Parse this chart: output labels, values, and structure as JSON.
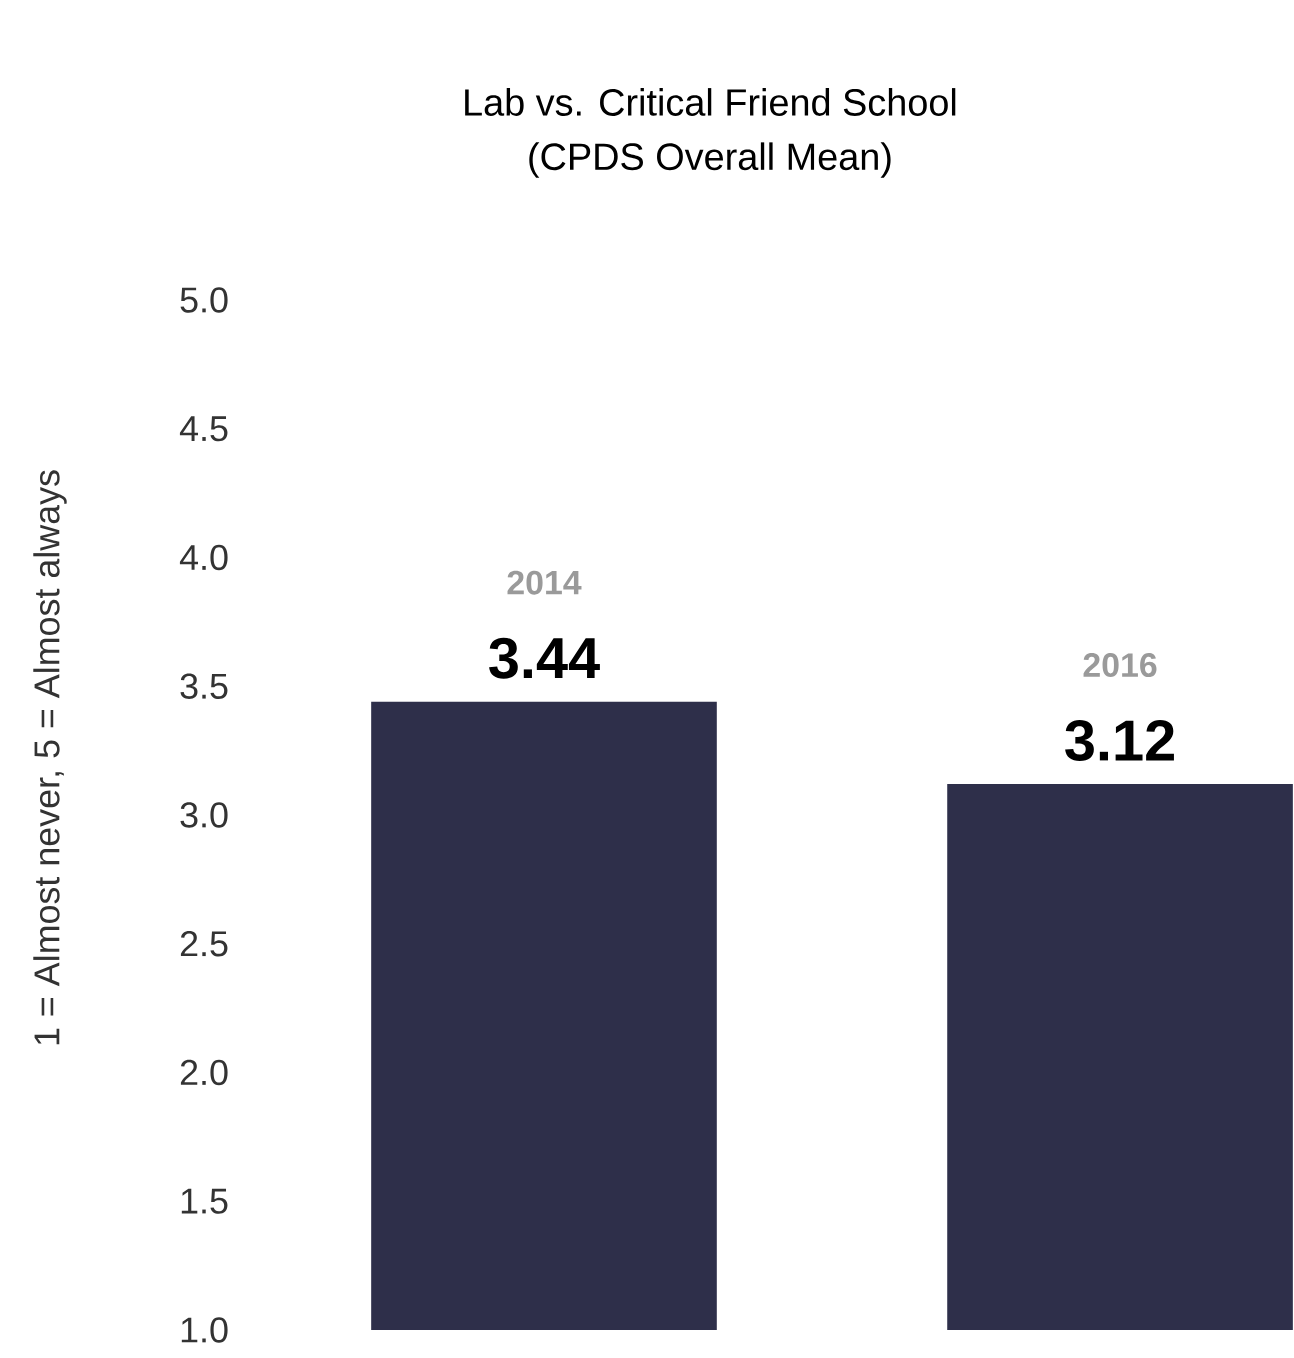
{
  "chart_data": {
    "type": "bar",
    "title": "Lab vs. Critical Friend School",
    "subtitle": "(CPDS Overall Mean)",
    "ylabel": "1 = Almost never, 5 = Almost always",
    "categories": [
      "2014",
      "2016"
    ],
    "values": [
      3.44,
      3.12
    ],
    "value_labels": [
      "3.44",
      "3.12"
    ],
    "color": "#2e2f4a",
    "ylim": [
      1,
      5
    ],
    "yticks": [
      {
        "value": 1,
        "label": "1.0"
      },
      {
        "value": 1.5,
        "label": "1.5"
      },
      {
        "value": 2,
        "label": "2.0"
      },
      {
        "value": 2.5,
        "label": "2.5"
      },
      {
        "value": 3,
        "label": "3.0"
      },
      {
        "value": 3.5,
        "label": "3.5"
      },
      {
        "value": 4,
        "label": "4.0"
      },
      {
        "value": 4.5,
        "label": "4.5"
      },
      {
        "value": 5,
        "label": "5.0"
      }
    ],
    "tick_labels": "y",
    "grid": false
  }
}
